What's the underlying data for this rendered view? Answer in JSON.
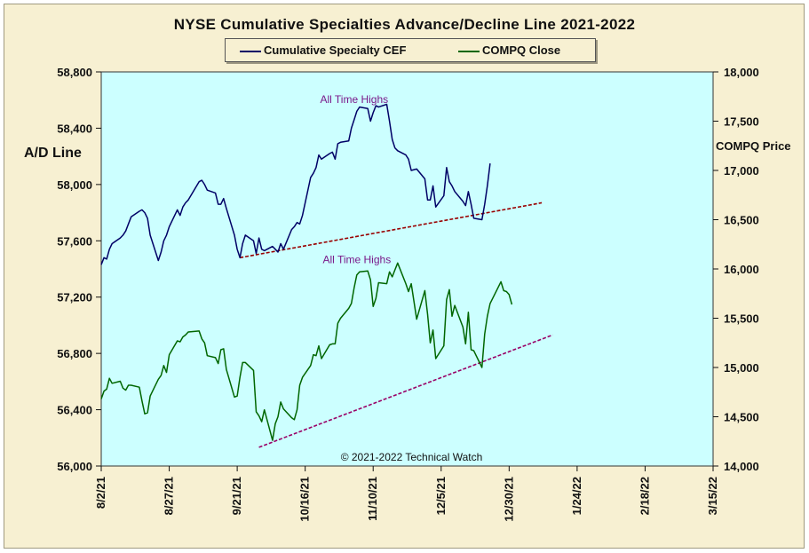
{
  "chart_data": {
    "type": "line",
    "title": "NYSE Cumulative  Specialties  Advance/Decline  Line  2021-2022",
    "ylabel_left": "A/D Line",
    "ylabel_right": "COMPQ Price",
    "x_dates": [
      "2021-08-02",
      "2022-03-15"
    ],
    "x_tick_labels": [
      "8/2/21",
      "8/27/21",
      "9/21/21",
      "10/16/21",
      "11/10/21",
      "12/5/21",
      "12/30/21",
      "1/24/22",
      "2/18/22",
      "3/15/22"
    ],
    "y_left_ticks": [
      "56,000",
      "56,400",
      "56,800",
      "57,200",
      "57,600",
      "58,000",
      "58,400",
      "58,800"
    ],
    "y_right_ticks": [
      "14,000",
      "14,500",
      "15,000",
      "15,500",
      "16,000",
      "16,500",
      "17,000",
      "17,500",
      "18,000"
    ],
    "y_left_range": [
      56000,
      58800
    ],
    "y_right_range": [
      14000,
      18000
    ],
    "background": "#ccffff",
    "series": [
      {
        "name": "Cumulative Specialty CEF",
        "axis": "left",
        "color": "#000066",
        "points": [
          [
            "2021-08-02",
            57430
          ],
          [
            "2021-08-03",
            57480
          ],
          [
            "2021-08-04",
            57470
          ],
          [
            "2021-08-05",
            57540
          ],
          [
            "2021-08-06",
            57580
          ],
          [
            "2021-08-09",
            57620
          ],
          [
            "2021-08-10",
            57640
          ],
          [
            "2021-08-11",
            57670
          ],
          [
            "2021-08-12",
            57720
          ],
          [
            "2021-08-13",
            57770
          ],
          [
            "2021-08-16",
            57810
          ],
          [
            "2021-08-17",
            57820
          ],
          [
            "2021-08-18",
            57800
          ],
          [
            "2021-08-19",
            57760
          ],
          [
            "2021-08-20",
            57640
          ],
          [
            "2021-08-23",
            57460
          ],
          [
            "2021-08-24",
            57520
          ],
          [
            "2021-08-25",
            57600
          ],
          [
            "2021-08-26",
            57640
          ],
          [
            "2021-08-27",
            57700
          ],
          [
            "2021-08-30",
            57820
          ],
          [
            "2021-08-31",
            57780
          ],
          [
            "2021-09-01",
            57840
          ],
          [
            "2021-09-02",
            57870
          ],
          [
            "2021-09-03",
            57890
          ],
          [
            "2021-09-07",
            58020
          ],
          [
            "2021-09-08",
            58030
          ],
          [
            "2021-09-09",
            58000
          ],
          [
            "2021-09-10",
            57960
          ],
          [
            "2021-09-13",
            57940
          ],
          [
            "2021-09-14",
            57860
          ],
          [
            "2021-09-15",
            57860
          ],
          [
            "2021-09-16",
            57900
          ],
          [
            "2021-09-17",
            57830
          ],
          [
            "2021-09-20",
            57640
          ],
          [
            "2021-09-21",
            57540
          ],
          [
            "2021-09-22",
            57480
          ],
          [
            "2021-09-23",
            57580
          ],
          [
            "2021-09-24",
            57640
          ],
          [
            "2021-09-27",
            57600
          ],
          [
            "2021-09-28",
            57510
          ],
          [
            "2021-09-29",
            57620
          ],
          [
            "2021-09-30",
            57540
          ],
          [
            "2021-10-01",
            57530
          ],
          [
            "2021-10-04",
            57560
          ],
          [
            "2021-10-05",
            57540
          ],
          [
            "2021-10-06",
            57520
          ],
          [
            "2021-10-07",
            57580
          ],
          [
            "2021-10-08",
            57540
          ],
          [
            "2021-10-11",
            57680
          ],
          [
            "2021-10-12",
            57700
          ],
          [
            "2021-10-13",
            57730
          ],
          [
            "2021-10-14",
            57720
          ],
          [
            "2021-10-15",
            57780
          ],
          [
            "2021-10-18",
            58050
          ],
          [
            "2021-10-19",
            58080
          ],
          [
            "2021-10-20",
            58120
          ],
          [
            "2021-10-21",
            58210
          ],
          [
            "2021-10-22",
            58180
          ],
          [
            "2021-10-25",
            58220
          ],
          [
            "2021-10-26",
            58230
          ],
          [
            "2021-10-27",
            58180
          ],
          [
            "2021-10-28",
            58290
          ],
          [
            "2021-10-29",
            58300
          ],
          [
            "2021-11-01",
            58310
          ],
          [
            "2021-11-02",
            58400
          ],
          [
            "2021-11-03",
            58460
          ],
          [
            "2021-11-04",
            58520
          ],
          [
            "2021-11-05",
            58550
          ],
          [
            "2021-11-08",
            58540
          ],
          [
            "2021-11-09",
            58450
          ],
          [
            "2021-11-10",
            58510
          ],
          [
            "2021-11-11",
            58560
          ],
          [
            "2021-11-12",
            58550
          ],
          [
            "2021-11-15",
            58570
          ],
          [
            "2021-11-16",
            58450
          ],
          [
            "2021-11-17",
            58320
          ],
          [
            "2021-11-18",
            58260
          ],
          [
            "2021-11-19",
            58240
          ],
          [
            "2021-11-22",
            58210
          ],
          [
            "2021-11-23",
            58180
          ],
          [
            "2021-11-24",
            58100
          ],
          [
            "2021-11-26",
            58110
          ],
          [
            "2021-11-29",
            58040
          ],
          [
            "2021-11-30",
            57890
          ],
          [
            "2021-12-01",
            57890
          ],
          [
            "2021-12-02",
            57990
          ],
          [
            "2021-12-03",
            57840
          ],
          [
            "2021-12-06",
            57920
          ],
          [
            "2021-12-07",
            58120
          ],
          [
            "2021-12-08",
            58020
          ],
          [
            "2021-12-09",
            57990
          ],
          [
            "2021-12-10",
            57950
          ],
          [
            "2021-12-13",
            57880
          ],
          [
            "2021-12-14",
            57850
          ],
          [
            "2021-12-15",
            57950
          ],
          [
            "2021-12-16",
            57860
          ],
          [
            "2021-12-17",
            57760
          ],
          [
            "2021-12-20",
            57750
          ],
          [
            "2021-12-21",
            57860
          ],
          [
            "2021-12-22",
            57990
          ],
          [
            "2021-12-23",
            58150
          ]
        ]
      },
      {
        "name": "COMPQ Close",
        "axis": "right",
        "color": "#006600",
        "points": [
          [
            "2021-08-02",
            14680
          ],
          [
            "2021-08-03",
            14760
          ],
          [
            "2021-08-04",
            14780
          ],
          [
            "2021-08-05",
            14890
          ],
          [
            "2021-08-06",
            14840
          ],
          [
            "2021-08-09",
            14860
          ],
          [
            "2021-08-10",
            14790
          ],
          [
            "2021-08-11",
            14770
          ],
          [
            "2021-08-12",
            14820
          ],
          [
            "2021-08-13",
            14820
          ],
          [
            "2021-08-16",
            14800
          ],
          [
            "2021-08-17",
            14660
          ],
          [
            "2021-08-18",
            14530
          ],
          [
            "2021-08-19",
            14540
          ],
          [
            "2021-08-20",
            14710
          ],
          [
            "2021-08-23",
            14880
          ],
          [
            "2021-08-24",
            14920
          ],
          [
            "2021-08-25",
            15020
          ],
          [
            "2021-08-26",
            14950
          ],
          [
            "2021-08-27",
            15130
          ],
          [
            "2021-08-30",
            15270
          ],
          [
            "2021-08-31",
            15260
          ],
          [
            "2021-09-01",
            15310
          ],
          [
            "2021-09-02",
            15330
          ],
          [
            "2021-09-03",
            15360
          ],
          [
            "2021-09-07",
            15370
          ],
          [
            "2021-09-08",
            15290
          ],
          [
            "2021-09-09",
            15250
          ],
          [
            "2021-09-10",
            15120
          ],
          [
            "2021-09-13",
            15100
          ],
          [
            "2021-09-14",
            15040
          ],
          [
            "2021-09-15",
            15180
          ],
          [
            "2021-09-16",
            15190
          ],
          [
            "2021-09-17",
            14980
          ],
          [
            "2021-09-20",
            14700
          ],
          [
            "2021-09-21",
            14710
          ],
          [
            "2021-09-22",
            14900
          ],
          [
            "2021-09-23",
            15050
          ],
          [
            "2021-09-24",
            15050
          ],
          [
            "2021-09-27",
            14970
          ],
          [
            "2021-09-28",
            14550
          ],
          [
            "2021-09-29",
            14510
          ],
          [
            "2021-09-30",
            14450
          ],
          [
            "2021-10-01",
            14570
          ],
          [
            "2021-10-04",
            14260
          ],
          [
            "2021-10-05",
            14430
          ],
          [
            "2021-10-06",
            14500
          ],
          [
            "2021-10-07",
            14650
          ],
          [
            "2021-10-08",
            14580
          ],
          [
            "2021-10-11",
            14490
          ],
          [
            "2021-10-12",
            14470
          ],
          [
            "2021-10-13",
            14570
          ],
          [
            "2021-10-14",
            14820
          ],
          [
            "2021-10-15",
            14900
          ],
          [
            "2021-10-18",
            15020
          ],
          [
            "2021-10-19",
            15130
          ],
          [
            "2021-10-20",
            15120
          ],
          [
            "2021-10-21",
            15220
          ],
          [
            "2021-10-22",
            15090
          ],
          [
            "2021-10-25",
            15230
          ],
          [
            "2021-10-26",
            15240
          ],
          [
            "2021-10-27",
            15240
          ],
          [
            "2021-10-28",
            15450
          ],
          [
            "2021-10-29",
            15500
          ],
          [
            "2021-11-01",
            15600
          ],
          [
            "2021-11-02",
            15650
          ],
          [
            "2021-11-03",
            15810
          ],
          [
            "2021-11-04",
            15940
          ],
          [
            "2021-11-05",
            15970
          ],
          [
            "2021-11-08",
            15980
          ],
          [
            "2021-11-09",
            15890
          ],
          [
            "2021-11-10",
            15620
          ],
          [
            "2021-11-11",
            15700
          ],
          [
            "2021-11-12",
            15860
          ],
          [
            "2021-11-15",
            15850
          ],
          [
            "2021-11-16",
            15970
          ],
          [
            "2021-11-17",
            15920
          ],
          [
            "2021-11-18",
            15990
          ],
          [
            "2021-11-19",
            16060
          ],
          [
            "2021-11-22",
            15850
          ],
          [
            "2021-11-23",
            15770
          ],
          [
            "2021-11-24",
            15850
          ],
          [
            "2021-11-26",
            15490
          ],
          [
            "2021-11-29",
            15780
          ],
          [
            "2021-11-30",
            15540
          ],
          [
            "2021-12-01",
            15250
          ],
          [
            "2021-12-02",
            15380
          ],
          [
            "2021-12-03",
            15090
          ],
          [
            "2021-12-06",
            15220
          ],
          [
            "2021-12-07",
            15690
          ],
          [
            "2021-12-08",
            15790
          ],
          [
            "2021-12-09",
            15520
          ],
          [
            "2021-12-10",
            15630
          ],
          [
            "2021-12-13",
            15410
          ],
          [
            "2021-12-14",
            15240
          ],
          [
            "2021-12-15",
            15560
          ],
          [
            "2021-12-16",
            15180
          ],
          [
            "2021-12-17",
            15170
          ],
          [
            "2021-12-20",
            15000
          ],
          [
            "2021-12-21",
            15340
          ],
          [
            "2021-12-22",
            15520
          ],
          [
            "2021-12-23",
            15650
          ],
          [
            "2021-12-27",
            15870
          ],
          [
            "2021-12-28",
            15780
          ],
          [
            "2021-12-29",
            15770
          ],
          [
            "2021-12-30",
            15740
          ],
          [
            "2021-12-31",
            15640
          ]
        ]
      }
    ],
    "trendlines": [
      {
        "axis": "left",
        "color": "#990000",
        "from": [
          "2021-09-22",
          57480
        ],
        "to": [
          "2022-01-11",
          57870
        ]
      },
      {
        "axis": "right",
        "color": "#990066",
        "from": [
          "2021-09-29",
          14190
        ],
        "to": [
          "2022-01-15",
          15330
        ]
      }
    ],
    "annotations": [
      {
        "text": "All Time Highs",
        "x": "2021-11-03",
        "axis": "left",
        "y": 58580
      },
      {
        "text": "All Time Highs",
        "x": "2021-11-04",
        "axis": "right",
        "y": 16060
      }
    ],
    "copyright": "© 2021-2022  Technical Watch",
    "grid": false,
    "legend_position": "top"
  }
}
